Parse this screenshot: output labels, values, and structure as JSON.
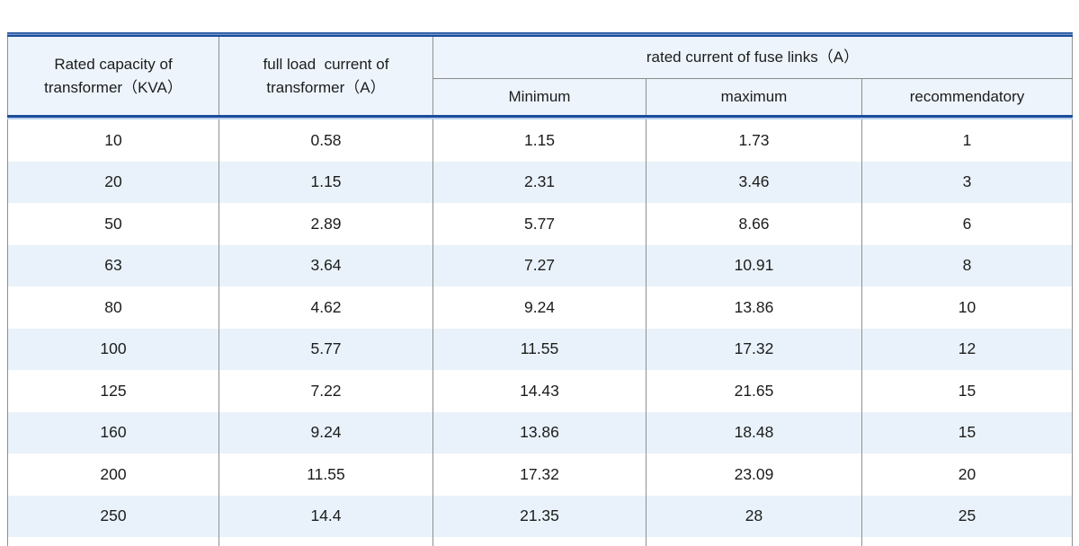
{
  "table": {
    "header": {
      "rated_capacity": "Rated capacity of\ntransformer（KVA）",
      "full_load_current": "full load  current of\ntransformer（A）",
      "fuse_links_group": "rated current of fuse links（A）",
      "sub": [
        "Minimum",
        "maximum",
        "recommendatory"
      ]
    },
    "rows": [
      [
        "10",
        "0.58",
        "1.15",
        "1.73",
        "1"
      ],
      [
        "20",
        "1.15",
        "2.31",
        "3.46",
        "3"
      ],
      [
        "50",
        "2.89",
        "5.77",
        "8.66",
        "6"
      ],
      [
        "63",
        "3.64",
        "7.27",
        "10.91",
        "8"
      ],
      [
        "80",
        "4.62",
        "9.24",
        "13.86",
        "10"
      ],
      [
        "100",
        "5.77",
        "11.55",
        "17.32",
        "12"
      ],
      [
        "125",
        "7.22",
        "14.43",
        "21.65",
        "15"
      ],
      [
        "160",
        "9.24",
        "13.86",
        "18.48",
        "15"
      ],
      [
        "200",
        "11.55",
        "17.32",
        "23.09",
        "20"
      ],
      [
        "250",
        "14.4",
        "21.35",
        "28",
        "25"
      ]
    ]
  },
  "colors": {
    "accent_blue": "#1c4d99",
    "accent_blue_light": "#b9cfec",
    "header_bg": "#edf4fc",
    "alt_row_bg": "#e9f2fa",
    "grid_line": "#8f8f8f",
    "text": "#1c1c1c"
  }
}
